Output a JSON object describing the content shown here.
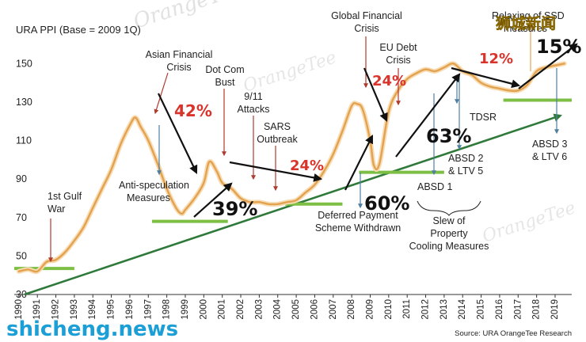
{
  "chart_data": {
    "type": "line",
    "title": "URA PPI (Base = 2009 1Q)",
    "source": "Source: URA  OrangeTee Research",
    "y_ticks": [
      30,
      50,
      70,
      90,
      110,
      130,
      150
    ],
    "ylim": [
      30,
      160
    ],
    "x_ticks": [
      "1990",
      "1991",
      "1992",
      "1993",
      "1994",
      "1995",
      "1996",
      "1997",
      "1998",
      "1999",
      "2000",
      "2001",
      "2002",
      "2003",
      "2004",
      "2005",
      "2006",
      "2007",
      "2008",
      "2009",
      "2010",
      "2011",
      "2012",
      "2013",
      "2014",
      "2015",
      "2016",
      "2017",
      "2018",
      "2019"
    ],
    "xlim": [
      1989.75,
      2019.9
    ],
    "series": [
      {
        "x": [
          1990.0,
          1990.5,
          1991.0,
          1991.5,
          1992.0,
          1992.5,
          1993.0,
          1993.5,
          1994.0,
          1994.5,
          1995.0,
          1995.5,
          1996.0,
          1996.3,
          1996.6,
          1997.0,
          1997.5,
          1998.0,
          1998.5,
          1998.8,
          1999.0,
          1999.5,
          2000.0,
          2000.3,
          2000.7,
          2001.0,
          2001.5,
          2002.0,
          2002.5,
          2003.0,
          2003.5,
          2004.0,
          2004.5,
          2005.0,
          2005.5,
          2006.0,
          2006.5,
          2007.0,
          2007.5,
          2008.0,
          2008.3,
          2008.6,
          2009.0,
          2009.2,
          2009.5,
          2010.0,
          2010.5,
          2011.0,
          2011.5,
          2012.0,
          2012.5,
          2013.0,
          2013.5,
          2014.0,
          2014.5,
          2015.0,
          2015.5,
          2016.0,
          2016.5,
          2017.0,
          2017.5,
          2018.0,
          2018.5,
          2019.0,
          2019.5
        ],
        "values": [
          42,
          43,
          42,
          47,
          48,
          52,
          58,
          65,
          75,
          85,
          95,
          108,
          118,
          122,
          117,
          110,
          98,
          85,
          75,
          72,
          74,
          80,
          88,
          99,
          94,
          88,
          85,
          80,
          78,
          78,
          77,
          77,
          78,
          79,
          83,
          87,
          94,
          103,
          115,
          128,
          129,
          126,
          110,
          97,
          98,
          125,
          136,
          142,
          145,
          147,
          146,
          148,
          150,
          146,
          144,
          140,
          138,
          137,
          136,
          136,
          139,
          146,
          148,
          149,
          150
        ]
      }
    ],
    "support_lines": [
      {
        "x": [
          1989.75,
          1993.0
        ],
        "y": 43.5
      },
      {
        "x": [
          1997.2,
          2001.3
        ],
        "y": 68
      },
      {
        "x": [
          2004.4,
          2007.5
        ],
        "y": 77
      },
      {
        "x": [
          2008.4,
          2013.0
        ],
        "y": 93.5
      },
      {
        "x": [
          2016.2,
          2019.9
        ],
        "y": 131
      }
    ],
    "trend_line": {
      "x": [
        1990.3,
        2019.3
      ],
      "y": [
        30,
        123
      ]
    },
    "annotations": [
      {
        "id": "gulf",
        "lines": [
          "1st Gulf",
          "War"
        ]
      },
      {
        "id": "asian",
        "lines": [
          "Asian Financial",
          "Crisis"
        ]
      },
      {
        "id": "antispec",
        "lines": [
          "Anti-speculation",
          "Measures"
        ]
      },
      {
        "id": "dotcom",
        "lines": [
          "Dot Com",
          "Bust"
        ]
      },
      {
        "id": "nineeleven",
        "lines": [
          "9/11",
          "Attacks"
        ]
      },
      {
        "id": "sars",
        "lines": [
          "SARS",
          "Outbreak"
        ]
      },
      {
        "id": "gfc",
        "lines": [
          "Global Financial",
          "Crisis"
        ]
      },
      {
        "id": "eudebt",
        "lines": [
          "EU Debt",
          "Crisis"
        ]
      },
      {
        "id": "deferred",
        "lines": [
          "Deferred Payment",
          "Scheme Withdrawn"
        ]
      },
      {
        "id": "absd1",
        "lines": [
          "ABSD 1"
        ]
      },
      {
        "id": "tdsr",
        "lines": [
          "TDSR"
        ]
      },
      {
        "id": "absd2",
        "lines": [
          "ABSD 2",
          "& LTV 5"
        ]
      },
      {
        "id": "slew",
        "lines": [
          "Slew of",
          "Property",
          "Cooling Measures"
        ]
      },
      {
        "id": "ssd",
        "lines": [
          "Relaxing of SSD",
          "measures"
        ]
      },
      {
        "id": "absd3",
        "lines": [
          "ABSD 3",
          "& LTV 6"
        ]
      }
    ],
    "percentages": [
      {
        "id": "p42",
        "text": "42%",
        "color": "#d9342b"
      },
      {
        "id": "p24a",
        "text": "24%",
        "color": "#d9342b"
      },
      {
        "id": "p24b",
        "text": "24%",
        "color": "#d9342b"
      },
      {
        "id": "p12",
        "text": "12%",
        "color": "#d9342b"
      },
      {
        "id": "p39",
        "text": "39%",
        "color": "#111111"
      },
      {
        "id": "p60",
        "text": "60%",
        "color": "#111111"
      },
      {
        "id": "p63",
        "text": "63%",
        "color": "#111111"
      },
      {
        "id": "p15",
        "text": "15%",
        "color": "#111111"
      }
    ],
    "colors": {
      "line": "#e3a24f",
      "line_glow": "#f7dcb4",
      "support": "#7cbf44",
      "trend": "#2f7a3a",
      "arrow": "#111111",
      "event_arrow": "#b03a2e",
      "policy_arrow": "#4f7fa0"
    }
  },
  "watermarks": {
    "top_left": "OrangeTee",
    "mid_1": "OrangeTee",
    "mid_2": "OrangeTee",
    "bottom_right": "shicheng.news",
    "top_right": "狮城新闻"
  }
}
